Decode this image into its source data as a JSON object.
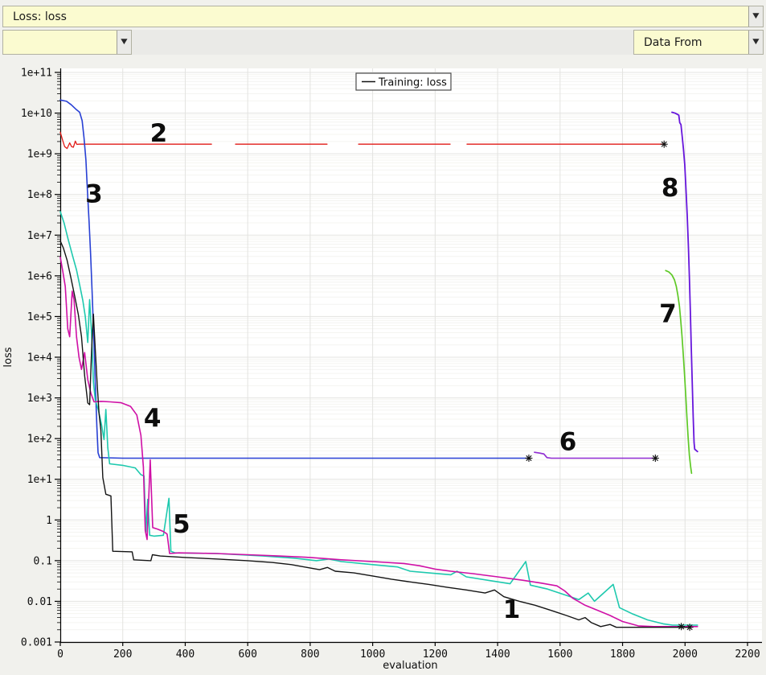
{
  "toolbar": {
    "metric_label": "Loss: loss",
    "series_combo_value": "",
    "data_from_label": "Data From"
  },
  "chart_data": {
    "type": "line",
    "title": "",
    "xlabel": "evaluation",
    "ylabel": "loss",
    "x_scale": "linear",
    "y_scale": "log",
    "xlim": [
      0,
      2200
    ],
    "ylim": [
      0.001,
      100000000000.0
    ],
    "grid": true,
    "x_ticks": [
      0,
      200,
      400,
      600,
      800,
      1000,
      1200,
      1400,
      1600,
      1800,
      2000,
      2200
    ],
    "y_tick_labels": [
      "1e+11",
      "1e+10",
      "1e+9",
      "1e+8",
      "1e+7",
      "1e+6",
      "1e+5",
      "1e+4",
      "1e+3",
      "1e+2",
      "1e+1",
      "1",
      "0.1",
      "0.01",
      "0.001"
    ],
    "legend": {
      "position": "top-center",
      "entries": [
        {
          "label": "Training: loss",
          "color": "#141414"
        }
      ]
    },
    "series": [
      {
        "id": "run-2-red",
        "annotation": "2",
        "color": "#e11b17",
        "width": 1.3,
        "points": [
          [
            0,
            3400000000.0
          ],
          [
            8,
            2100000000.0
          ],
          [
            14,
            1500000000.0
          ],
          [
            22,
            1350000000.0
          ],
          [
            30,
            1850000000.0
          ],
          [
            36,
            1500000000.0
          ],
          [
            42,
            1450000000.0
          ],
          [
            48,
            2050000000.0
          ],
          [
            53,
            1700000000.0
          ],
          [
            60,
            1720000000.0
          ],
          [
            484,
            1720000000.0
          ],
          null,
          [
            561,
            1720000000.0
          ],
          [
            854,
            1720000000.0
          ],
          null,
          [
            955,
            1720000000.0
          ],
          [
            1248,
            1720000000.0
          ],
          null,
          [
            1302,
            1720000000.0
          ],
          [
            1933,
            1720000000.0
          ]
        ]
      },
      {
        "id": "run-3-blue",
        "annotation": "3",
        "color": "#2840d4",
        "width": 1.6,
        "points": [
          [
            0,
            21000000000.0
          ],
          [
            20,
            19500000000.0
          ],
          [
            35,
            16000000000.0
          ],
          [
            50,
            12500000000.0
          ],
          [
            62,
            10500000000.0
          ],
          [
            70,
            6500000000.0
          ],
          [
            76,
            2500000000.0
          ],
          [
            82,
            700000000.0
          ],
          [
            87,
            120000000.0
          ],
          [
            92,
            22000000.0
          ],
          [
            97,
            3500000.0
          ],
          [
            102,
            400000.0
          ],
          [
            107,
            35000.0
          ],
          [
            112,
            2500
          ],
          [
            117,
            200
          ],
          [
            121,
            45
          ],
          [
            126,
            34
          ],
          [
            200,
            33
          ],
          [
            1500,
            33
          ]
        ]
      },
      {
        "id": "run-5-cyan",
        "annotation": "5",
        "color": "#1ec9ae",
        "width": 1.6,
        "points": [
          [
            0,
            38000000.0
          ],
          [
            12,
            20000000.0
          ],
          [
            25,
            8000000.0
          ],
          [
            40,
            3000000.0
          ],
          [
            52,
            1400000.0
          ],
          [
            62,
            600000.0
          ],
          [
            72,
            250000.0
          ],
          [
            80,
            100000.0
          ],
          [
            88,
            23000.0
          ],
          [
            94,
            260000.0
          ],
          [
            100,
            40000.0
          ],
          [
            106,
            2500
          ],
          [
            112,
            900
          ],
          [
            122,
            500
          ],
          [
            132,
            220
          ],
          [
            140,
            95
          ],
          [
            146,
            520
          ],
          [
            152,
            60
          ],
          [
            158,
            24
          ],
          [
            200,
            22
          ],
          [
            240,
            19
          ],
          [
            258,
            13
          ],
          [
            268,
            12
          ],
          [
            274,
            0.5
          ],
          [
            280,
            3.2
          ],
          [
            286,
            0.42
          ],
          [
            300,
            0.4
          ],
          [
            330,
            0.42
          ],
          [
            348,
            3.4
          ],
          [
            354,
            0.17
          ],
          [
            368,
            0.155
          ],
          [
            500,
            0.15
          ],
          [
            650,
            0.13
          ],
          [
            750,
            0.115
          ],
          [
            820,
            0.1
          ],
          [
            860,
            0.11
          ],
          [
            900,
            0.095
          ],
          [
            1000,
            0.08
          ],
          [
            1080,
            0.07
          ],
          [
            1120,
            0.055
          ],
          [
            1180,
            0.05
          ],
          [
            1250,
            0.045
          ],
          [
            1270,
            0.055
          ],
          [
            1300,
            0.04
          ],
          [
            1380,
            0.032
          ],
          [
            1440,
            0.027
          ],
          [
            1490,
            0.095
          ],
          [
            1505,
            0.025
          ],
          [
            1560,
            0.02
          ],
          [
            1620,
            0.014
          ],
          [
            1660,
            0.011
          ],
          [
            1690,
            0.016
          ],
          [
            1710,
            0.01
          ],
          [
            1770,
            0.026
          ],
          [
            1790,
            0.007
          ],
          [
            1830,
            0.005
          ],
          [
            1880,
            0.0035
          ],
          [
            1930,
            0.0028
          ],
          [
            1960,
            0.0026
          ],
          [
            2040,
            0.0026
          ]
        ]
      },
      {
        "id": "run-4-magenta",
        "annotation": "4",
        "color": "#cf10a6",
        "width": 1.6,
        "points": [
          [
            0,
            2900000.0
          ],
          [
            8,
            1300000.0
          ],
          [
            16,
            550000.0
          ],
          [
            24,
            50000.0
          ],
          [
            30,
            32000.0
          ],
          [
            38,
            420000.0
          ],
          [
            44,
            260000.0
          ],
          [
            52,
            32000.0
          ],
          [
            60,
            10000.0
          ],
          [
            68,
            5000
          ],
          [
            78,
            13000.0
          ],
          [
            88,
            2800
          ],
          [
            98,
            1300
          ],
          [
            108,
            800
          ],
          [
            130,
            820
          ],
          [
            160,
            800
          ],
          [
            195,
            760
          ],
          [
            225,
            620
          ],
          [
            245,
            380
          ],
          [
            258,
            120
          ],
          [
            266,
            20
          ],
          [
            272,
            0.55
          ],
          [
            278,
            0.33
          ],
          [
            288,
            30
          ],
          [
            296,
            0.65
          ],
          [
            310,
            0.6
          ],
          [
            330,
            0.52
          ],
          [
            342,
            0.45
          ],
          [
            350,
            0.15
          ],
          [
            380,
            0.155
          ],
          [
            500,
            0.15
          ],
          [
            600,
            0.14
          ],
          [
            700,
            0.13
          ],
          [
            800,
            0.12
          ],
          [
            900,
            0.105
          ],
          [
            1000,
            0.095
          ],
          [
            1100,
            0.085
          ],
          [
            1150,
            0.075
          ],
          [
            1200,
            0.062
          ],
          [
            1250,
            0.055
          ],
          [
            1320,
            0.048
          ],
          [
            1400,
            0.04
          ],
          [
            1480,
            0.033
          ],
          [
            1540,
            0.028
          ],
          [
            1590,
            0.024
          ],
          [
            1615,
            0.018
          ],
          [
            1640,
            0.012
          ],
          [
            1680,
            0.008
          ],
          [
            1720,
            0.006
          ],
          [
            1760,
            0.0045
          ],
          [
            1800,
            0.0032
          ],
          [
            1850,
            0.0025
          ],
          [
            1900,
            0.0024
          ],
          [
            2040,
            0.0024
          ]
        ]
      },
      {
        "id": "run-1-black",
        "annotation": "1",
        "color": "#141414",
        "width": 1.4,
        "points": [
          [
            0,
            7200000.0
          ],
          [
            10,
            4800000.0
          ],
          [
            22,
            2400000.0
          ],
          [
            34,
            900000.0
          ],
          [
            46,
            320000.0
          ],
          [
            58,
            110000.0
          ],
          [
            68,
            32000.0
          ],
          [
            78,
            3500
          ],
          [
            88,
            750
          ],
          [
            94,
            680
          ],
          [
            100,
            14000.0
          ],
          [
            106,
            115000.0
          ],
          [
            112,
            16000.0
          ],
          [
            118,
            2200
          ],
          [
            124,
            420
          ],
          [
            130,
            160
          ],
          [
            136,
            11
          ],
          [
            146,
            4.3
          ],
          [
            162,
            3.9
          ],
          [
            168,
            0.17
          ],
          [
            230,
            0.165
          ],
          [
            235,
            0.105
          ],
          [
            290,
            0.1
          ],
          [
            295,
            0.14
          ],
          [
            320,
            0.13
          ],
          [
            400,
            0.12
          ],
          [
            500,
            0.11
          ],
          [
            600,
            0.1
          ],
          [
            680,
            0.09
          ],
          [
            740,
            0.08
          ],
          [
            790,
            0.068
          ],
          [
            830,
            0.06
          ],
          [
            855,
            0.068
          ],
          [
            880,
            0.055
          ],
          [
            940,
            0.05
          ],
          [
            1000,
            0.042
          ],
          [
            1060,
            0.035
          ],
          [
            1120,
            0.03
          ],
          [
            1180,
            0.026
          ],
          [
            1240,
            0.022
          ],
          [
            1300,
            0.019
          ],
          [
            1360,
            0.016
          ],
          [
            1390,
            0.019
          ],
          [
            1420,
            0.013
          ],
          [
            1470,
            0.01
          ],
          [
            1520,
            0.008
          ],
          [
            1570,
            0.006
          ],
          [
            1620,
            0.0045
          ],
          [
            1660,
            0.0035
          ],
          [
            1680,
            0.004
          ],
          [
            1700,
            0.003
          ],
          [
            1730,
            0.0024
          ],
          [
            1760,
            0.0027
          ],
          [
            1780,
            0.0023
          ],
          [
            2015,
            0.0023
          ]
        ]
      },
      {
        "id": "run-6-purple",
        "annotation": "6",
        "color": "#8f2bd1",
        "width": 1.6,
        "points": [
          [
            1518,
            46
          ],
          [
            1535,
            44
          ],
          [
            1548,
            42
          ],
          [
            1558,
            34
          ],
          [
            1572,
            33
          ],
          [
            1905,
            33
          ]
        ]
      },
      {
        "id": "run-7-green",
        "annotation": "7",
        "color": "#5ec926",
        "width": 1.7,
        "points": [
          [
            1938,
            1350000.0
          ],
          [
            1948,
            1250000.0
          ],
          [
            1958,
            1050000.0
          ],
          [
            1966,
            800000.0
          ],
          [
            1972,
            550000.0
          ],
          [
            1977,
            340000.0
          ],
          [
            1982,
            180000.0
          ],
          [
            1986,
            85000.0
          ],
          [
            1990,
            35000.0
          ],
          [
            1994,
            13000.0
          ],
          [
            1998,
            4200
          ],
          [
            2002,
            1200
          ],
          [
            2006,
            340
          ],
          [
            2010,
            100
          ],
          [
            2014,
            38
          ],
          [
            2018,
            20
          ],
          [
            2021,
            14
          ]
        ]
      },
      {
        "id": "run-8-violet",
        "annotation": "8",
        "color": "#6716dc",
        "width": 1.8,
        "points": [
          [
            1958,
            10500000000.0
          ],
          [
            1968,
            10000000000.0
          ],
          [
            1976,
            9300000000.0
          ],
          [
            1980,
            8900000000.0
          ],
          [
            1983,
            5800000000.0
          ],
          [
            1987,
            5200000000.0
          ],
          [
            1991,
            2600000000.0
          ],
          [
            1995,
            1300000000.0
          ],
          [
            1999,
            550000000.0
          ],
          [
            2003,
            140000000.0
          ],
          [
            2007,
            30000000.0
          ],
          [
            2011,
            5000000.0
          ],
          [
            2014,
            900000.0
          ],
          [
            2017,
            130000.0
          ],
          [
            2020,
            18000.0
          ],
          [
            2023,
            2500
          ],
          [
            2026,
            350
          ],
          [
            2029,
            80
          ],
          [
            2031,
            55
          ],
          [
            2040,
            48
          ]
        ]
      }
    ],
    "end_markers": [
      {
        "x": 1500,
        "y": 33
      },
      {
        "x": 1905,
        "y": 33
      },
      {
        "x": 1933,
        "y": 1720000000.0
      },
      {
        "x": 1988,
        "y": 0.0024
      },
      {
        "x": 2015,
        "y": 0.0023
      }
    ],
    "annotations": [
      {
        "label": "1",
        "x": 1445,
        "y": 0.0065
      },
      {
        "label": "2",
        "x": 315,
        "y": 3300000000.0
      },
      {
        "label": "3",
        "x": 108,
        "y": 105000000.0
      },
      {
        "label": "4",
        "x": 295,
        "y": 330
      },
      {
        "label": "5",
        "x": 388,
        "y": 0.8
      },
      {
        "label": "6",
        "x": 1625,
        "y": 85
      },
      {
        "label": "7",
        "x": 1945,
        "y": 120000.0
      },
      {
        "label": "8",
        "x": 1952,
        "y": 150000000.0
      }
    ]
  }
}
